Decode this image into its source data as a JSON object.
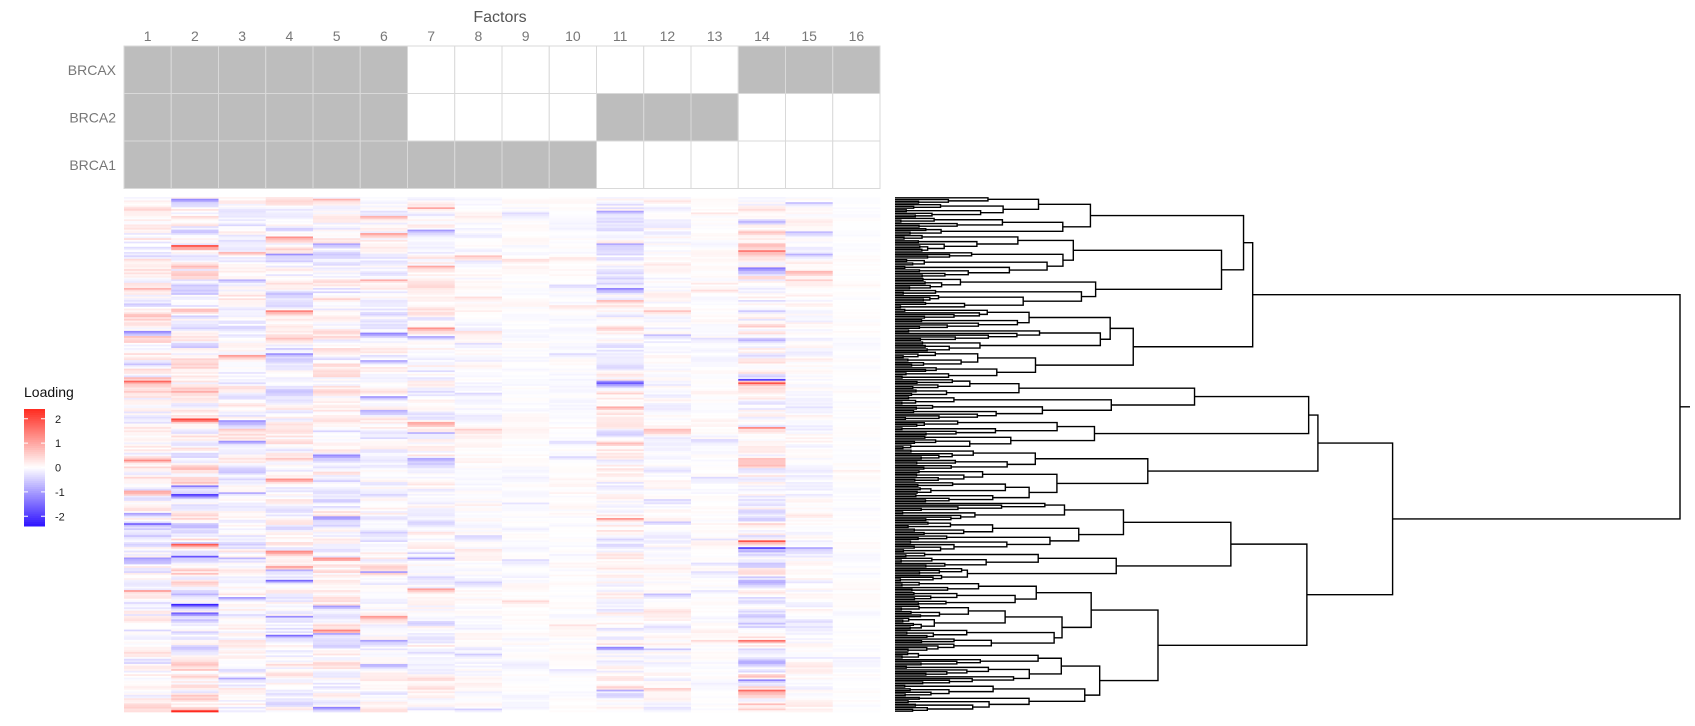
{
  "chart_data": {
    "type": "heatmap",
    "x_title": "Factors",
    "factors": [
      "1",
      "2",
      "3",
      "4",
      "5",
      "6",
      "7",
      "8",
      "9",
      "10",
      "11",
      "12",
      "13",
      "14",
      "15",
      "16"
    ],
    "groups": [
      {
        "name": "BRCAX",
        "membership": [
          1,
          1,
          1,
          1,
          1,
          1,
          0,
          0,
          0,
          0,
          0,
          0,
          0,
          1,
          1,
          1
        ]
      },
      {
        "name": "BRCA2",
        "membership": [
          1,
          1,
          1,
          1,
          1,
          1,
          0,
          0,
          0,
          0,
          1,
          1,
          1,
          0,
          0,
          0
        ]
      },
      {
        "name": "BRCA1",
        "membership": [
          1,
          1,
          1,
          1,
          1,
          1,
          1,
          1,
          1,
          1,
          0,
          0,
          0,
          0,
          0,
          0
        ]
      }
    ],
    "membership_colors": {
      "member": "#bdbdbd",
      "nonmember": "#ffffff"
    },
    "loading_rows": 300,
    "column_scale": [
      0.55,
      0.75,
      0.45,
      0.55,
      0.55,
      0.45,
      0.45,
      0.22,
      0.15,
      0.15,
      0.5,
      0.3,
      0.15,
      0.7,
      0.3,
      0.1
    ],
    "legend": {
      "title": "Loading",
      "ticks": [
        {
          "label": "2",
          "value": 2
        },
        {
          "label": "1",
          "value": 1
        },
        {
          "label": "0",
          "value": 0
        },
        {
          "label": "-1",
          "value": -1
        },
        {
          "label": "-2",
          "value": -2
        }
      ],
      "range": [
        -2.4,
        2.4
      ],
      "colors": {
        "low": "#2f14ff",
        "mid": "#ffffff",
        "high": "#ff2a1f"
      }
    },
    "dendrogram": {
      "orientation": "right",
      "leaves": 300
    }
  }
}
